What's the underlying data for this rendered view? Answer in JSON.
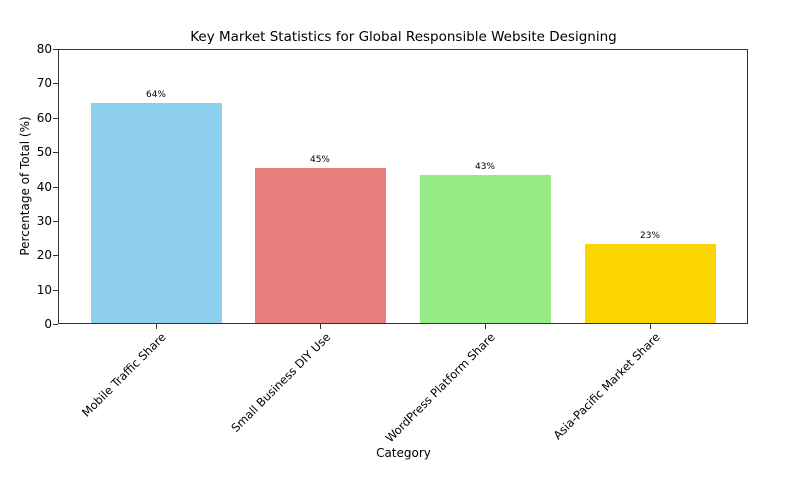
{
  "chart_data": {
    "type": "bar",
    "title": "Key Market Statistics for Global Responsible Website Designing",
    "xlabel": "Category",
    "ylabel": "Percentage of Total (%)",
    "ylim": [
      0,
      80
    ],
    "yticks": [
      0,
      10,
      20,
      30,
      40,
      50,
      60,
      70,
      80
    ],
    "grid": false,
    "categories": [
      "Mobile Traffic Share",
      "Small Business DIY Use",
      "WordPress Platform Share",
      "Asia-Pacific Market Share"
    ],
    "values": [
      64,
      45,
      43,
      23
    ],
    "value_labels": [
      "64%",
      "45%",
      "43%",
      "23%"
    ],
    "colors": [
      "#8fcfee",
      "#e87e7c",
      "#98ec88",
      "#fad500"
    ]
  }
}
